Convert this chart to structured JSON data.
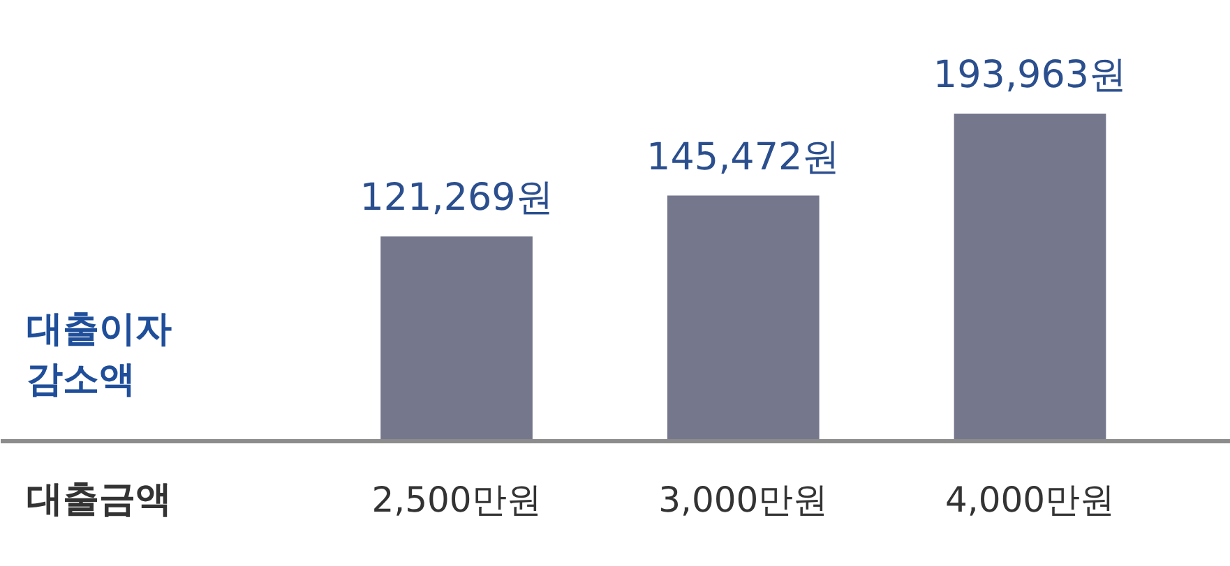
{
  "chart_data": {
    "type": "bar",
    "categories": [
      "2,500만원",
      "3,000만원",
      "4,000만원"
    ],
    "values": [
      121269,
      145472,
      193963
    ],
    "value_labels": [
      "121,269원",
      "145,472원",
      "193,963원"
    ],
    "color": "#75778d",
    "xlabel": "대출금액",
    "ylabel": "대출이자 감소액"
  }
}
